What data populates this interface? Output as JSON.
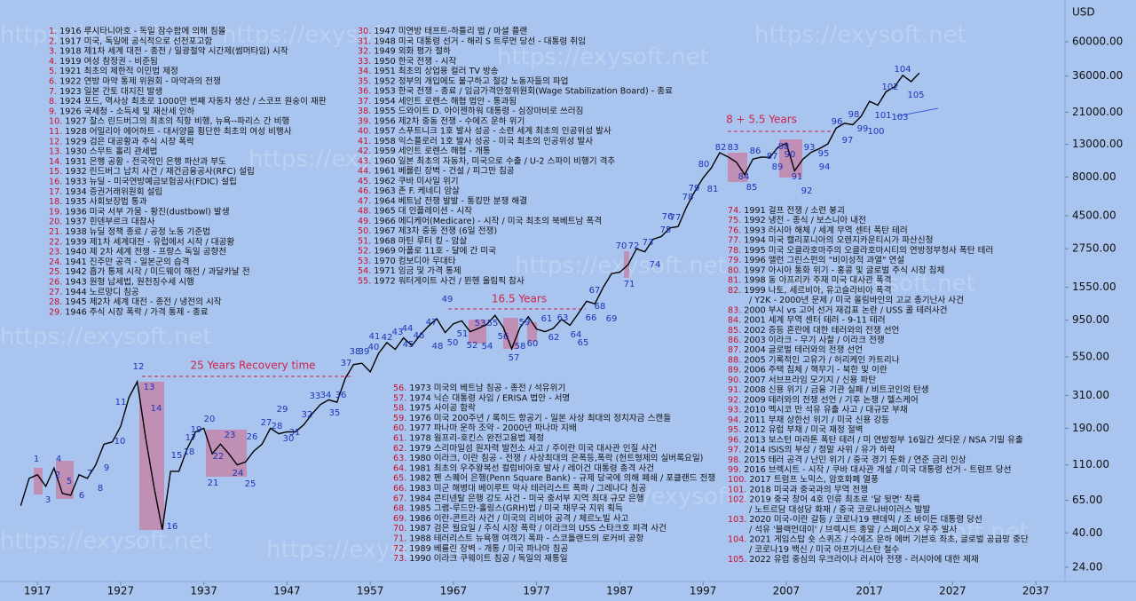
{
  "chart_data": {
    "type": "line",
    "currency": "USD",
    "watermark": "https://exysoft.net",
    "log_scale": true,
    "xlim": [
      1912.5,
      2040.5
    ],
    "xticks": [
      1917,
      1927,
      1937,
      1947,
      1957,
      1967,
      1977,
      1987,
      1997,
      2007,
      2017,
      2027,
      2037
    ],
    "ylim": [
      19.4,
      111700
    ],
    "yticks": [
      {
        "value": 24,
        "label": "24.00"
      },
      {
        "value": 40,
        "label": "40.00"
      },
      {
        "value": 65,
        "label": "65.00"
      },
      {
        "value": 110,
        "label": "110.00"
      },
      {
        "value": 190,
        "label": "190.00"
      },
      {
        "value": 310,
        "label": "310.00"
      },
      {
        "value": 550,
        "label": "550.00"
      },
      {
        "value": 950,
        "label": "950.00"
      },
      {
        "value": 1550,
        "label": "1550.00"
      },
      {
        "value": 2750,
        "label": "2750.00"
      },
      {
        "value": 4500,
        "label": "4500.00"
      },
      {
        "value": 8000,
        "label": "8000.00"
      },
      {
        "value": 13000,
        "label": "13000.00"
      },
      {
        "value": 21000,
        "label": "21000.00"
      },
      {
        "value": 36000,
        "label": "36000.00"
      },
      {
        "value": 60000,
        "label": "60000.00"
      }
    ],
    "x": [
      1915,
      1916,
      1917,
      1918,
      1919,
      1920,
      1921,
      1922,
      1923,
      1924,
      1925,
      1926,
      1927,
      1928,
      1929,
      1930,
      1931,
      1932,
      1933,
      1934,
      1935,
      1936,
      1937,
      1938,
      1939,
      1940,
      1941,
      1942,
      1943,
      1944,
      1945,
      1946,
      1947,
      1948,
      1949,
      1950,
      1951,
      1952,
      1953,
      1954,
      1955,
      1956,
      1957,
      1958,
      1959,
      1960,
      1961,
      1962,
      1963,
      1964,
      1965,
      1966,
      1967,
      1968,
      1969,
      1970,
      1971,
      1972,
      1973,
      1974,
      1975,
      1976,
      1977,
      1978,
      1979,
      1980,
      1981,
      1982,
      1983,
      1984,
      1985,
      1986,
      1987,
      1988,
      1989,
      1990,
      1991,
      1992,
      1993,
      1994,
      1995,
      1996,
      1997,
      1998,
      1999,
      2000,
      2001,
      2002,
      2003,
      2004,
      2005,
      2006,
      2007,
      2008,
      2009,
      2010,
      2011,
      2012,
      2013,
      2014,
      2015,
      2016,
      2017,
      2018,
      2019,
      2020,
      2021,
      2022,
      2023
    ],
    "series": [
      {
        "color": "#000000",
        "values": [
          60,
          90,
          95,
          80,
          105,
          72,
          70,
          95,
          90,
          110,
          150,
          155,
          195,
          300,
          380,
          165,
          80,
          42,
          100,
          100,
          140,
          180,
          190,
          130,
          150,
          130,
          110,
          115,
          135,
          150,
          190,
          175,
          180,
          180,
          200,
          235,
          270,
          290,
          280,
          400,
          490,
          500,
          440,
          580,
          680,
          615,
          730,
          650,
          760,
          870,
          970,
          790,
          900,
          940,
          800,
          840,
          890,
          1020,
          850,
          620,
          850,
          1000,
          830,
          800,
          840,
          960,
          880,
          1050,
          1260,
          1210,
          1550,
          1900,
          1940,
          2170,
          2750,
          2630,
          3170,
          3300,
          3750,
          3830,
          5100,
          6450,
          7900,
          9180,
          11500,
          10800,
          10000,
          8300,
          10450,
          10780,
          10720,
          12460,
          13260,
          8780,
          10430,
          11580,
          12220,
          13100,
          16580,
          17820,
          17430,
          19760,
          24720,
          23330,
          28540,
          30600,
          36340,
          33150,
          37690
        ]
      }
    ],
    "annotations": [
      "25 Years Recovery time",
      "16.5 Years",
      "8 + 5.5 Years"
    ],
    "markers": [
      1,
      2,
      3,
      4,
      5,
      6,
      7,
      8,
      9,
      10,
      11,
      12,
      13,
      14,
      15,
      16,
      17,
      18,
      19,
      20,
      21,
      22,
      23,
      24,
      25,
      26,
      27,
      28,
      29,
      30,
      31,
      32,
      33,
      34,
      35,
      36,
      37,
      38,
      39,
      40,
      41,
      42,
      43,
      44,
      45,
      46,
      47,
      48,
      49,
      50,
      51,
      52,
      53,
      54,
      55,
      56,
      57,
      58,
      59,
      60,
      61,
      62,
      63,
      64,
      65,
      66,
      67,
      68,
      69,
      70,
      71,
      72,
      73,
      74,
      75,
      76,
      77,
      78,
      79,
      80,
      81,
      82,
      83,
      84,
      85,
      86,
      87,
      88,
      89,
      90,
      91,
      92,
      93,
      94,
      95,
      96,
      97,
      98,
      99,
      100,
      101,
      102,
      103,
      104,
      105
    ],
    "events": [
      {
        "num": "1.",
        "text": "1916 루시타니아호 - 독일 잠수함에 의해 침몰"
      },
      {
        "num": "2.",
        "text": "1917 미국, 독일에 공식적으로 선전포고함"
      },
      {
        "num": "3.",
        "text": "1918 제1차 세계 대전 - 종전 / 일광절약 시간제(썸머타임) 시작"
      },
      {
        "num": "4.",
        "text": "1919 여성 참정권 - 비준됨"
      },
      {
        "num": "5.",
        "text": "1921 최초의 제한적 이민법 제정"
      },
      {
        "num": "6.",
        "text": "1922 연방 마약 통제 위원회 - 마약과의 전쟁"
      },
      {
        "num": "7.",
        "text": "1923 일본 간토 대지진 발생"
      },
      {
        "num": "8.",
        "text": "1924 포드, 역사상 최초로 1000만 번째 자동차 생산 / 스코프 원숭이 재판"
      },
      {
        "num": "9.",
        "text": "1926 국세청 - 소득세 및 재산세 인하"
      },
      {
        "num": "10.",
        "text": "1927 찰스 린드버그의 최초의 직항 비행, 뉴욕--파리스 간 비행"
      },
      {
        "num": "11.",
        "text": "1928 어밀리아 에어하트 - 대서양을 횡단한 최초의 여성 비행사"
      },
      {
        "num": "12.",
        "text": "1929 검은 대공황과 주식 시장 폭락"
      },
      {
        "num": "13.",
        "text": "1930 스무트 홀리 관세법"
      },
      {
        "num": "14.",
        "text": "1931 은행 공황 - 전국적인 은행 파산과 부도"
      },
      {
        "num": "15.",
        "text": "1932 린드버그 납치 사건 / 재건금융공사(RFC) 설립"
      },
      {
        "num": "16.",
        "text": "1933 뉴딜 - 미국연방예금보험공사(FDIC) 설립"
      },
      {
        "num": "17.",
        "text": "1934 증권거래위원회 설립"
      },
      {
        "num": "18.",
        "text": "1935 사회보장법 통과"
      },
      {
        "num": "19.",
        "text": "1936 미국 서부 가뭄 - 황진(dustbowl) 발생"
      },
      {
        "num": "20.",
        "text": "1937 힌덴부르크 대참사"
      },
      {
        "num": "21.",
        "text": "1938 뉴딜 정책 종료 / 공정 노동 기준법"
      },
      {
        "num": "22.",
        "text": "1939 제1차 세계대전 - 유럽에서 시작 / 대공황"
      },
      {
        "num": "23.",
        "text": "1940 제 2차 세계 전쟁 - 프랑스 독일 공향전"
      },
      {
        "num": "24.",
        "text": "1941 진주만 공격 - 일본군의 습격"
      },
      {
        "num": "25.",
        "text": "1942 흡가 통제 시작 / 미드웨이 해전 / 과달카날 전"
      },
      {
        "num": "26.",
        "text": "1943 원형 납세법, 원천징수세 시행"
      },
      {
        "num": "27.",
        "text": "1944 노르망디 침공"
      },
      {
        "num": "28.",
        "text": "1945 제2차 세계 대전 - 종전 / 냉전의 시작"
      },
      {
        "num": "29.",
        "text": "1946 주식 시장 폭락 / 가격 통제 - 종료"
      },
      {
        "num": "30.",
        "text": "1947 미연방 태프트-하틀리 법 / 마셜 플랜"
      },
      {
        "num": "31.",
        "text": "1948 미국 대통령 선거 - 해리 S 트루먼 당선 - 대통령 취임"
      },
      {
        "num": "32.",
        "text": "1949 외화 평가 절하"
      },
      {
        "num": "33.",
        "text": "1950 한국 전쟁 - 시작"
      },
      {
        "num": "34.",
        "text": "1951 최초의 상업용 컬러 TV 방송"
      },
      {
        "num": "35.",
        "text": "1952 정부의 개입에도 불구하고 철강 노동자들의 파업"
      },
      {
        "num": "36.",
        "text": "1953 한국 전쟁 - 종료 / 임금가격안정위원회(Wage  Stabilization Board) - 종료"
      },
      {
        "num": "37.",
        "text": "1954 세인트 로렌스 해협 법안 - 통과됨"
      },
      {
        "num": "38.",
        "text": "1955 드와이트 D. 아이젠하워 대통령 - 심장마비로 쓰러짐"
      },
      {
        "num": "39.",
        "text": "1956 제2차 중동 전쟁 - 수에즈 운하 위기"
      },
      {
        "num": "40.",
        "text": "1957 스푸트니크 1호 발사 성공 - 소련 세계 최초의 인공위성 발사"
      },
      {
        "num": "41.",
        "text": "1958 익스플로러 1호 발사 성공 - 미국 최초의 인공위성 발사"
      },
      {
        "num": "42.",
        "text": "1959 세인트 로렌스 해협 - 개통"
      },
      {
        "num": "43.",
        "text": "1960 일본 최초의 자동차, 미국으로 수출 / U-2 스파이 비행기 격추"
      },
      {
        "num": "44.",
        "text": "1961 베를린 장벽 - 건설 / 피그만 침공"
      },
      {
        "num": "45.",
        "text": "1962 쿠바 미사일 위기"
      },
      {
        "num": "46.",
        "text": "1963 존 F. 케네디 암살"
      },
      {
        "num": "47.",
        "text": "1964 베트남 전쟁 발발 - 통킹만 분쟁 해결"
      },
      {
        "num": "48.",
        "text": "1965 대 인플레이션 - 시작"
      },
      {
        "num": "49.",
        "text": "1966 메디케어(Medicare) - 시작 / 미국 최초의 북베트남 폭격"
      },
      {
        "num": "50.",
        "text": "1967 제3차 중동 전쟁 (6일 전쟁)"
      },
      {
        "num": "51.",
        "text": "1968 마틴 루터 킹 - 암살"
      },
      {
        "num": "52.",
        "text": "1969 아폴로 11호 - 달에 간 미국"
      },
      {
        "num": "53.",
        "text": "1970 컴보디아 무대타"
      },
      {
        "num": "54.",
        "text": "1971 임금 및 가격 통제"
      },
      {
        "num": "55.",
        "text": "1972 워터게이트 사건 / 뮌헨 올림픽 참사"
      },
      {
        "num": "56.",
        "text": "1973 미국의 베트남 침공 - 종전 / 석유위기"
      },
      {
        "num": "57.",
        "text": "1974 닉슨 대통령 사임 / ERISA 법안 - 서명"
      },
      {
        "num": "58.",
        "text": "1975 사이공 함락"
      },
      {
        "num": "59.",
        "text": "1976 미국 200주년 / 록히드 항공기 - 일본 사상 최대의 정치자금 스캔들"
      },
      {
        "num": "60.",
        "text": "1977 파나마 운하 조약 - 2000년 파나마 지배"
      },
      {
        "num": "61.",
        "text": "1978 웜프리-호킨스 완전고용법 제정"
      },
      {
        "num": "62.",
        "text": "1979 스리마일섬 원자력 발전소 사고 / 주이란 미국 대사관 인질 사건"
      },
      {
        "num": "63.",
        "text": "1980 이라크, 이란 침공 - 전쟁 / 사상최대의 은폭등,폭락 (헌트형제의 실버록요일)"
      },
      {
        "num": "64.",
        "text": "1981 최초의 우주왕복선 컬럼비아호 발사 / 레이건 대통령 총격 사건"
      },
      {
        "num": "65.",
        "text": "1982 펜 스퀘어 은행(Penn Square Bank) - 규제 당국에 의해 폐쇄 / 포클랜드 전쟁"
      },
      {
        "num": "66.",
        "text": "1983 미군 해병대 베이루트 막사 테러리스트 폭파 / 그레나다 침공"
      },
      {
        "num": "67.",
        "text": "1984 콘티넨탈 은행 강도 사건 - 미국 중서부 지역 최대 규모 은행"
      },
      {
        "num": "68.",
        "text": "1985 그램-루드만-홀링스(GRH)법 / 미국 채무국 지위 획득"
      },
      {
        "num": "69.",
        "text": "1986 이란-콘트라 사건 / 미국의 리비아 공격 / 체르노빌 사고"
      },
      {
        "num": "70.",
        "text": "1987 검은 월요일 / 주식 시장 폭락 / 이라크의 USS 스타크호 피격 사건"
      },
      {
        "num": "71.",
        "text": "1988 테러리스트 뉴욕행 여객기 폭파 - 스코틀랜드의 로커비 공항"
      },
      {
        "num": "72.",
        "text": "1989 베를린 장벽 - 개통 / 미국 파나마 침공"
      },
      {
        "num": "73.",
        "text": "1990 이라크 쿠웨이트 침공 / 독일의 재통일"
      },
      {
        "num": "74.",
        "text": "1991 걸프 전쟁 / 소련 붕괴"
      },
      {
        "num": "75.",
        "text": "1992 냉전 - 종식 / 보스니아 내전"
      },
      {
        "num": "76.",
        "text": "1993 러시아 해체 / 세계 무역 센터 폭탄 테러"
      },
      {
        "num": "77.",
        "text": "1994 미국 캘리포니아의 오렌지카운티시가 파산신청"
      },
      {
        "num": "78.",
        "text": "1995 미국 오클라호마주의 오클라호마시티의 연방정부청사 폭탄 테러"
      },
      {
        "num": "79.",
        "text": "1996 앨런 그린스펀의 \"비이성적 과열\" 연설"
      },
      {
        "num": "80.",
        "text": "1997 아시아 통화 위기 - 홍콩 및 글로벌 주식 시장 침체"
      },
      {
        "num": "81.",
        "text": "1998 동 아프리카 주재 미국 대사관 폭격"
      },
      {
        "num": "82.",
        "text": "1999 나토, 세르비아, 유고슬라비아 폭격",
        "more": "/ Y2K - 2000년 문제 / 미국 올림바인의 고교 총기난사 사건"
      },
      {
        "num": "83.",
        "text": "2000 부시 vs 고어 선거 재검표 논란 / USS 콜 테러사건"
      },
      {
        "num": "84.",
        "text": "2001 세계 무역 센터 테러 - 9-11 테러"
      },
      {
        "num": "85.",
        "text": "2002 증등 혼란에 대한 테러와의 전쟁 선언"
      },
      {
        "num": "86.",
        "text": "2003 이라크 - 무기 사찰 / 이라크 전쟁"
      },
      {
        "num": "87.",
        "text": "2004 글로벌 테러와의 전쟁 선언"
      },
      {
        "num": "88.",
        "text": "2005 기록적인 고유가 / 허리케인 카트리나"
      },
      {
        "num": "89.",
        "text": "2006 주택 침체 / 핵무기 - 북한 및 이란"
      },
      {
        "num": "90.",
        "text": "2007 서브프라임 모기지 / 신용 파탄"
      },
      {
        "num": "91.",
        "text": "2008 신용 위기 / 금융 기관 실패 / 비트코인의 탄생"
      },
      {
        "num": "92.",
        "text": "2009 테러와의 전쟁 선언 / 기후 논쟁 / 헬스케어"
      },
      {
        "num": "93.",
        "text": "2010 멕시코 만 석유 유출 사고 / 대규모 부채"
      },
      {
        "num": "94.",
        "text": "2011 부채 상한선 위기 / 미국 신용 강등"
      },
      {
        "num": "95.",
        "text": "2012 유럽 부채 / 미국 재정 절벽"
      },
      {
        "num": "96.",
        "text": "2013 보스턴 마라톤 폭탄 테러 / 미 연방정부 16일간 셧다운 / NSA 기밀 유출"
      },
      {
        "num": "97.",
        "text": "2014 ISIS의 부상 / 정말 사위 / 유가 하락"
      },
      {
        "num": "98.",
        "text": "2015 테러 공격 / 난민 위기 / 중국 경기 둔화 / 연준 금리 인상"
      },
      {
        "num": "99.",
        "text": "2016 브렉시트 - 시작 / 쿠바 대사관 개설 / 미국 대통령 선거 - 트럼프 당선"
      },
      {
        "num": "100.",
        "text": "2017 트럼프 노믹스, 암호화폐 열풍"
      },
      {
        "num": "101.",
        "text": "2018 미국과 중국과의 무역 전쟁"
      },
      {
        "num": "102.",
        "text": "2019 중국 창어 4호 인류 최초로 '달 뒷면' 착륙",
        "more": "/ 노트르담 대성당 화재 / 중국 코로나바이러스 발발"
      },
      {
        "num": "103.",
        "text": "2020 미국-이란 갈등 / 코로나19 팬데믹 / 조 바이든 대통령 당선",
        "more": "/ 석유 '블랙먼데이' / 브렉시트 종말 / 스페이스X 우주 발사"
      },
      {
        "num": "104.",
        "text": "2021 게임스탑 숏 스퀴즈 / 수에즈 운하 에버 기븐호 좌초, 글로벌 공급망 중단",
        "more": "/ 코로나19 백신 / 미국 아프가니스탄 철수"
      },
      {
        "num": "105.",
        "text": "2022 유럽 중심의 우크라이나 러시아 전쟁 - 러시아에 대한 제재"
      }
    ]
  }
}
